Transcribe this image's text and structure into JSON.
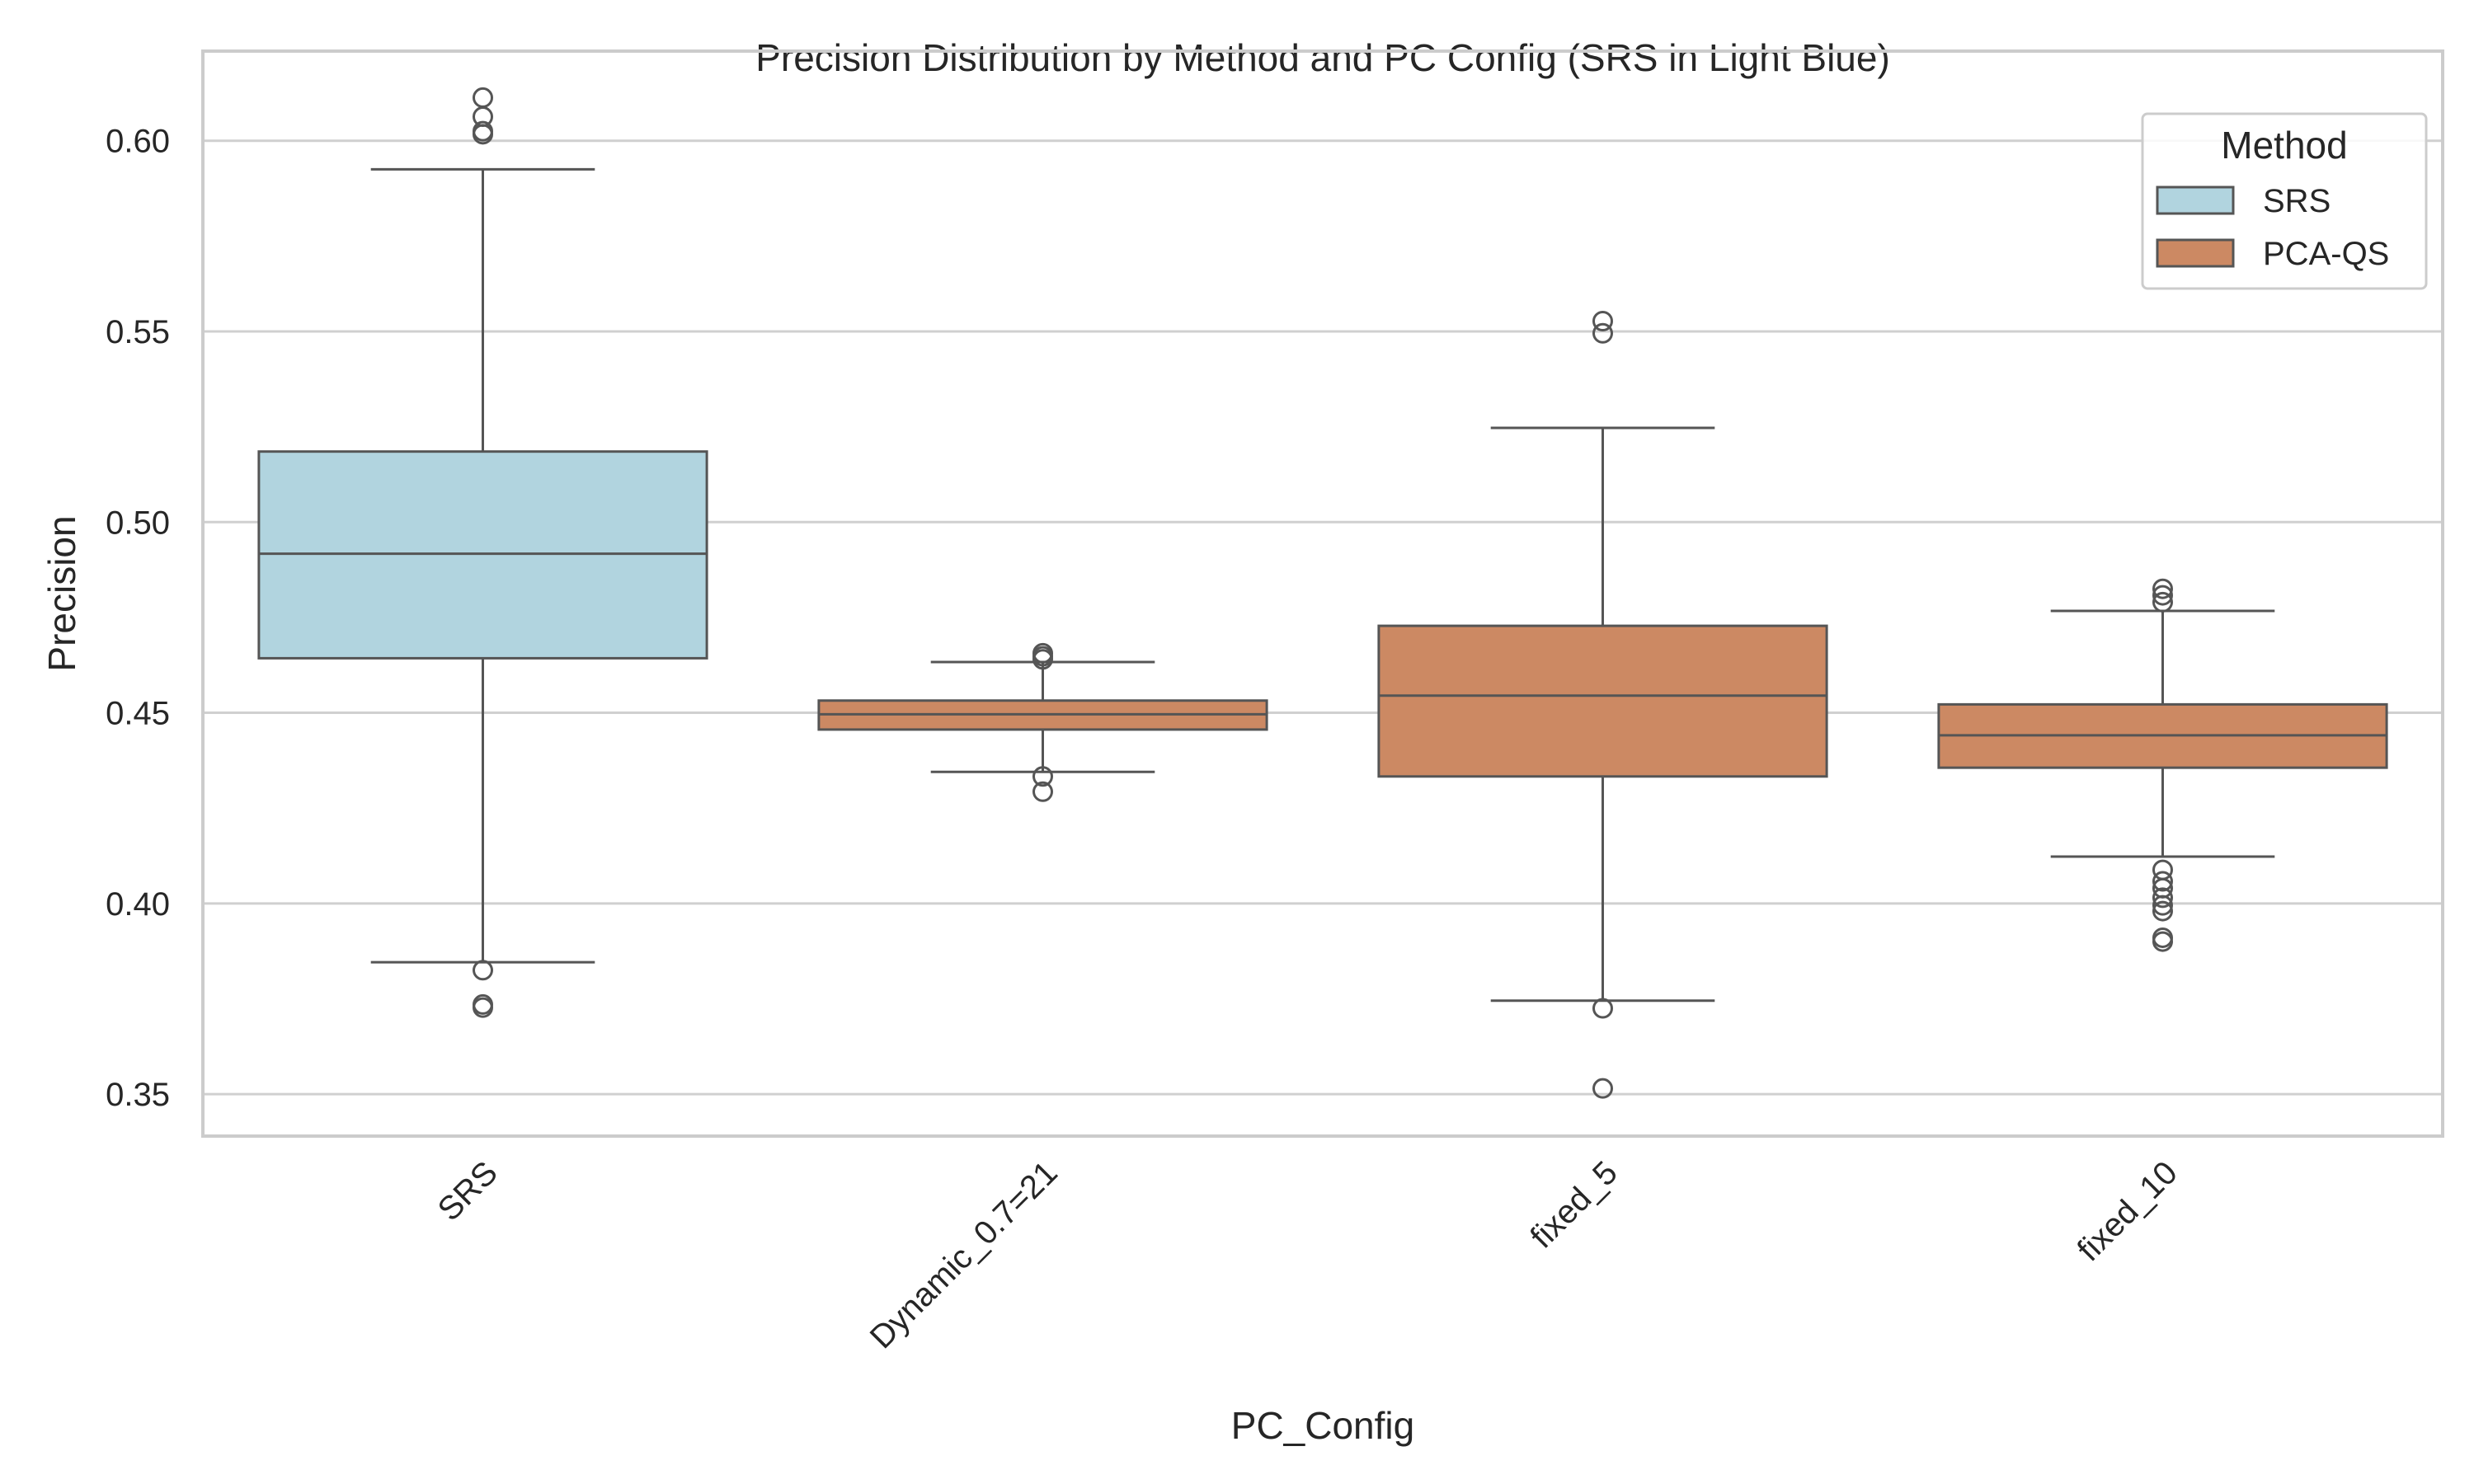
{
  "chart_data": {
    "type": "box",
    "title": "Precision Distribution by Method and PC Config (SRS in Light Blue)",
    "xlabel": "PC_Config",
    "ylabel": "Precision",
    "ylim": [
      0.339,
      0.6235
    ],
    "yticks": [
      0.35,
      0.4,
      0.45,
      0.5,
      0.55,
      0.6
    ],
    "ytick_labels": [
      "0.35",
      "0.40",
      "0.45",
      "0.50",
      "0.55",
      "0.60"
    ],
    "grid": "horizontal",
    "legend": {
      "title": "Method",
      "position": "top-right",
      "entries": [
        {
          "label": "SRS",
          "color": "#b1d4df"
        },
        {
          "label": "PCA-QS",
          "color": "#cc8963"
        }
      ]
    },
    "categories": [
      "SRS",
      "Dynamic_0.7=21",
      "fixed_5",
      "fixed_10"
    ],
    "boxes": [
      {
        "category": "SRS",
        "method": "SRS",
        "whisker_low": 0.3846,
        "q1": 0.4643,
        "median": 0.4917,
        "q3": 0.5185,
        "whisker_high": 0.5925,
        "outliers": [
          0.6113,
          0.6063,
          0.6025,
          0.6017,
          0.3825,
          0.3735,
          0.3727
        ]
      },
      {
        "category": "Dynamic_0.7=21",
        "method": "PCA-QS",
        "whisker_low": 0.4345,
        "q1": 0.4456,
        "median": 0.4496,
        "q3": 0.4532,
        "whisker_high": 0.4633,
        "outliers": [
          0.4656,
          0.4648,
          0.464,
          0.4333,
          0.4293
        ]
      },
      {
        "category": "fixed_5",
        "method": "PCA-QS",
        "whisker_low": 0.3745,
        "q1": 0.4333,
        "median": 0.4545,
        "q3": 0.4728,
        "whisker_high": 0.5247,
        "outliers": [
          0.5527,
          0.5495,
          0.3725,
          0.3515
        ]
      },
      {
        "category": "fixed_10",
        "method": "PCA-QS",
        "whisker_low": 0.4123,
        "q1": 0.4356,
        "median": 0.4441,
        "q3": 0.4522,
        "whisker_high": 0.4767,
        "outliers": [
          0.4825,
          0.4808,
          0.479,
          0.4088,
          0.4058,
          0.404,
          0.4015,
          0.3995,
          0.398,
          0.391,
          0.39
        ]
      }
    ],
    "colors": {
      "box_line": "#555555",
      "grid": "#d0d0d0",
      "frame": "#cccccc"
    }
  }
}
